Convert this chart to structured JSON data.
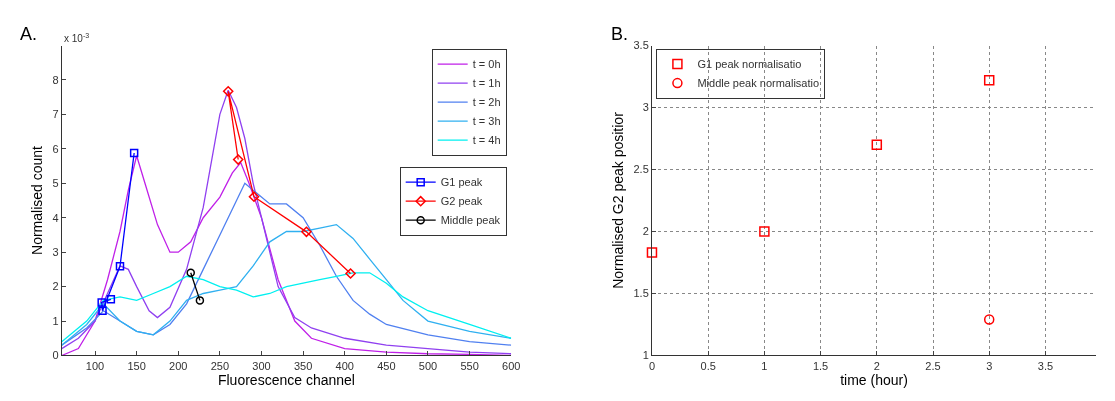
{
  "chart_data": [
    {
      "type": "line",
      "title": "A.",
      "xlabel": "Fluorescence channel",
      "ylabel": "Normalised count",
      "annotations": [
        "x 10$^{-3}$"
      ],
      "xlim": [
        60,
        600
      ],
      "xticks": [
        100,
        150,
        200,
        250,
        300,
        350,
        400,
        450,
        500,
        550,
        600
      ],
      "ylim": [
        0,
        9
      ],
      "yticks": [
        0,
        1,
        2,
        3,
        4,
        5,
        6,
        7,
        8
      ],
      "grid": false,
      "legend": "top right",
      "line_style": "solid",
      "series": [
        {
          "name": "t = 0h",
          "color": "#c020e8",
          "x": [
            60,
            80,
            100,
            115,
            130,
            140,
            150,
            160,
            175,
            190,
            200,
            215,
            230,
            250,
            265,
            275,
            285,
            300,
            320,
            340,
            360,
            400,
            450,
            500,
            550,
            600
          ],
          "values": [
            0.0,
            0.2,
            1.0,
            2.2,
            3.6,
            4.8,
            5.8,
            5.0,
            3.8,
            3.0,
            3.0,
            3.3,
            4.0,
            4.6,
            5.3,
            5.6,
            5.0,
            4.0,
            2.2,
            1.0,
            0.5,
            0.2,
            0.1,
            0.05,
            0.03,
            0.0
          ]
        },
        {
          "name": "t = 1h",
          "color": "#9040f0",
          "x": [
            60,
            80,
            100,
            115,
            130,
            140,
            150,
            165,
            175,
            190,
            210,
            230,
            250,
            260,
            270,
            280,
            290,
            300,
            310,
            320,
            340,
            360,
            400,
            450,
            500,
            550,
            600
          ],
          "values": [
            0.2,
            0.5,
            1.0,
            1.8,
            2.6,
            2.5,
            2.0,
            1.3,
            1.1,
            1.4,
            2.5,
            4.3,
            7.0,
            7.7,
            7.2,
            6.3,
            5.0,
            4.0,
            3.0,
            2.0,
            1.1,
            0.8,
            0.5,
            0.3,
            0.2,
            0.1,
            0.05
          ]
        },
        {
          "name": "t = 2h",
          "color": "#5080f0",
          "x": [
            60,
            90,
            110,
            130,
            150,
            170,
            190,
            210,
            230,
            250,
            270,
            280,
            290,
            310,
            330,
            350,
            370,
            390,
            410,
            430,
            450,
            500,
            550,
            600
          ],
          "values": [
            0.3,
            0.8,
            1.3,
            1.0,
            0.7,
            0.6,
            0.9,
            1.5,
            2.5,
            3.5,
            4.5,
            5.0,
            4.8,
            4.4,
            4.4,
            4.0,
            3.2,
            2.3,
            1.6,
            1.2,
            0.9,
            0.6,
            0.4,
            0.3
          ]
        },
        {
          "name": "t = 3h",
          "color": "#30b0f0",
          "x": [
            60,
            90,
            110,
            130,
            150,
            170,
            190,
            210,
            230,
            250,
            270,
            290,
            310,
            330,
            350,
            370,
            390,
            410,
            430,
            450,
            470,
            500,
            550,
            600
          ],
          "values": [
            0.3,
            0.9,
            1.5,
            1.0,
            0.7,
            0.6,
            1.0,
            1.6,
            1.8,
            1.9,
            2.0,
            2.6,
            3.3,
            3.6,
            3.6,
            3.7,
            3.8,
            3.4,
            2.8,
            2.2,
            1.6,
            1.0,
            0.7,
            0.5
          ]
        },
        {
          "name": "t = 4h",
          "color": "#00f0f0",
          "x": [
            60,
            90,
            110,
            130,
            150,
            170,
            190,
            210,
            230,
            250,
            270,
            290,
            310,
            330,
            350,
            370,
            390,
            410,
            430,
            450,
            470,
            500,
            550,
            600
          ],
          "values": [
            0.4,
            1.0,
            1.6,
            1.7,
            1.6,
            1.8,
            2.0,
            2.3,
            2.2,
            2.0,
            1.9,
            1.7,
            1.8,
            2.0,
            2.1,
            2.2,
            2.3,
            2.4,
            2.4,
            2.1,
            1.7,
            1.3,
            0.9,
            0.5
          ]
        },
        {
          "name": "G1 peak",
          "color": "#0000ff",
          "marker": "square",
          "x": [
            147,
            130,
            109,
            108,
            119
          ],
          "values": [
            5.88,
            2.59,
            1.3,
            1.54,
            1.63
          ]
        },
        {
          "name": "G2 peak",
          "color": "#ff0000",
          "marker": "diamond",
          "x": [
            272,
            260,
            291,
            354,
            407
          ],
          "values": [
            5.69,
            7.67,
            4.61,
            3.59,
            2.38
          ]
        },
        {
          "name": "Middle peak",
          "color": "#000000",
          "marker": "circle",
          "x": [
            215,
            226
          ],
          "values": [
            2.4,
            1.6
          ]
        }
      ]
    },
    {
      "type": "scatter",
      "title": "B.",
      "xlabel": "time (hour)",
      "ylabel": "Normalised G2 peak positior",
      "xlim": [
        0,
        3.95
      ],
      "xticks": [
        0,
        0.5,
        1,
        1.5,
        2,
        2.5,
        3,
        3.5
      ],
      "ylim": [
        1,
        3.5
      ],
      "yticks": [
        1,
        1.5,
        2,
        2.5,
        3,
        3.5
      ],
      "grid": true,
      "legend": "top left",
      "series": [
        {
          "name": "G1 peak normalisatio",
          "color": "#ff0000",
          "marker": "square",
          "x": [
            0,
            1,
            2,
            3
          ],
          "values": [
            1.83,
            2.0,
            2.7,
            3.22
          ]
        },
        {
          "name": "Middle peak normalisatio",
          "color": "#ff0000",
          "marker": "circle",
          "x": [
            3
          ],
          "values": [
            1.29
          ]
        }
      ]
    }
  ]
}
